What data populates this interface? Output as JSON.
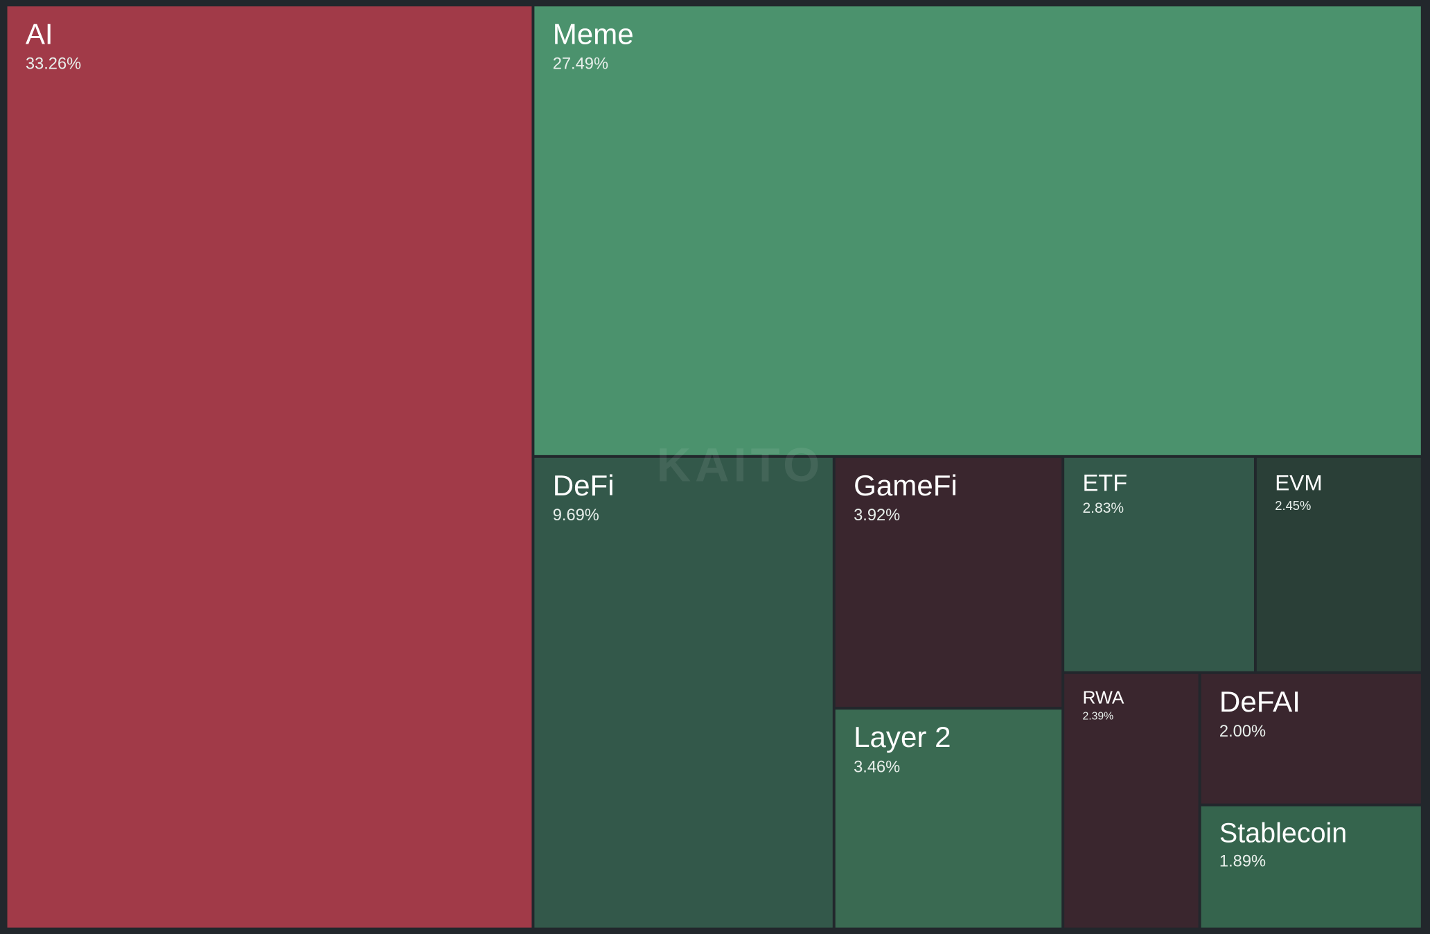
{
  "chart_data": {
    "type": "treemap",
    "watermark": "KAITO",
    "categories": [
      "AI",
      "Meme",
      "DeFi",
      "GameFi",
      "Layer 2",
      "ETF",
      "EVM",
      "RWA",
      "DeFAI",
      "Stablecoin"
    ],
    "values": [
      33.26,
      27.49,
      9.69,
      3.92,
      3.46,
      2.83,
      2.45,
      2.39,
      2.0,
      1.89
    ],
    "value_labels": [
      "33.26%",
      "27.49%",
      "9.69%",
      "3.92%",
      "3.46%",
      "2.83%",
      "2.45%",
      "2.39%",
      "2.00%",
      "1.89%"
    ],
    "colors": [
      "#a13a48",
      "#4b926d",
      "#33584a",
      "#3a262e",
      "#3a6a52",
      "#33584a",
      "#2a3f37",
      "#3a262e",
      "#3a262e",
      "#35644d"
    ]
  }
}
